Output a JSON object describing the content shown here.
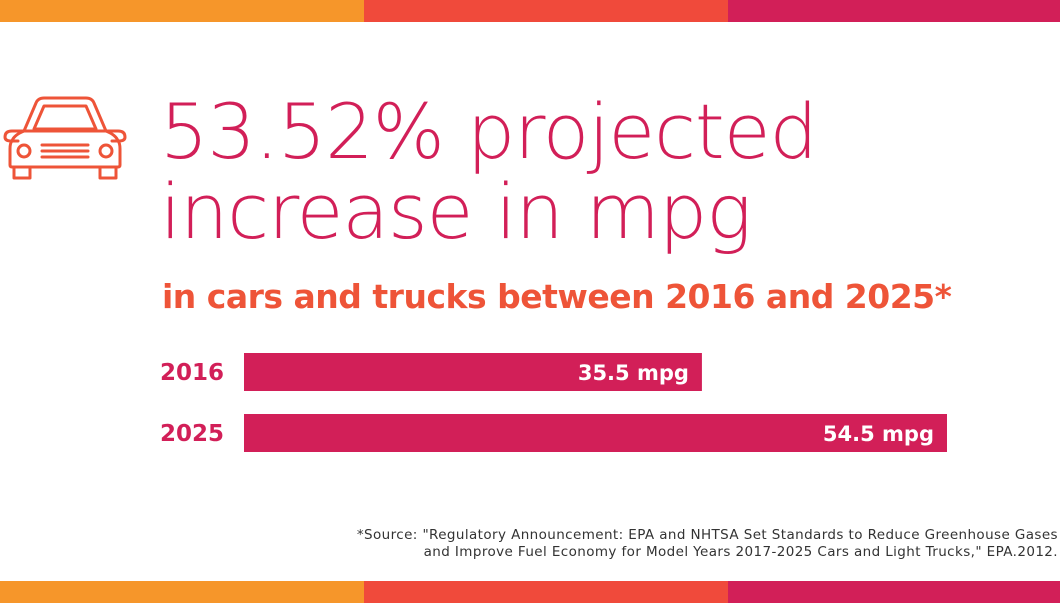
{
  "colors": {
    "magenta": "#d21f58",
    "coral": "#ee5438",
    "orange": "#f6962a",
    "stripe_red": "#f04a3b",
    "stripe_magenta": "#d21f58"
  },
  "icon": "car-icon",
  "headline": {
    "line1": "53.52% projected",
    "line2": "increase in mpg"
  },
  "subheadline": "in cars and trucks between 2016 and 2025*",
  "chart_data": {
    "type": "bar",
    "orientation": "horizontal",
    "categories": [
      "2016",
      "2025"
    ],
    "values": [
      35.5,
      54.5
    ],
    "value_labels": [
      "35.5 mpg",
      "54.5 mpg"
    ],
    "unit": "mpg",
    "grid": false
  },
  "source": {
    "line1": "*Source: \"Regulatory Announcement: EPA and NHTSA Set Standards to Reduce Greenhouse Gases",
    "line2": "and Improve Fuel Economy for Model Years 2017-2025 Cars and Light Trucks,\" EPA.2012."
  }
}
